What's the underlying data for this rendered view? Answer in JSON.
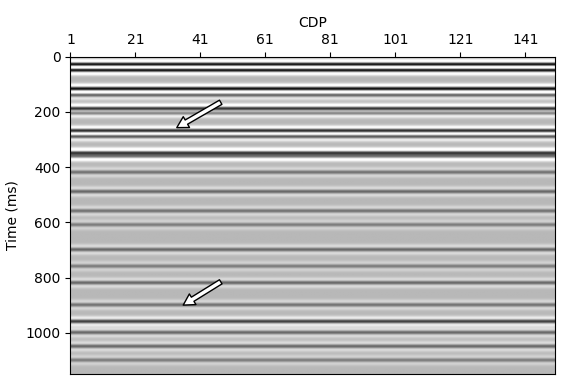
{
  "chart_data": {
    "type": "seismic_section",
    "x_label": "CDP",
    "y_label": "Time (ms)",
    "xlim": [
      1,
      150
    ],
    "ylim": [
      1150,
      0
    ],
    "xticks": [
      1,
      21,
      41,
      61,
      81,
      101,
      121,
      141
    ],
    "yticks": [
      0,
      200,
      400,
      600,
      800,
      1000
    ],
    "color": "gray",
    "reflectors": [
      {
        "time": 30,
        "amplitude": 1.0
      },
      {
        "time": 50,
        "amplitude": 1.0
      },
      {
        "time": 118,
        "amplitude": 0.9
      },
      {
        "time": 140,
        "amplitude": 0.5
      },
      {
        "time": 190,
        "amplitude": 0.9
      },
      {
        "time": 205,
        "amplitude": 0.6
      },
      {
        "time": 270,
        "amplitude": 0.8
      },
      {
        "time": 290,
        "amplitude": 0.6
      },
      {
        "time": 350,
        "amplitude": 1.0
      },
      {
        "time": 362,
        "amplitude": 0.8
      },
      {
        "time": 420,
        "amplitude": 0.35
      },
      {
        "time": 490,
        "amplitude": 0.4
      },
      {
        "time": 560,
        "amplitude": 0.35
      },
      {
        "time": 610,
        "amplitude": 0.3
      },
      {
        "time": 700,
        "amplitude": 0.4
      },
      {
        "time": 760,
        "amplitude": 0.3
      },
      {
        "time": 820,
        "amplitude": 0.4
      },
      {
        "time": 900,
        "amplitude": 0.35
      },
      {
        "time": 960,
        "amplitude": 0.6
      },
      {
        "time": 1000,
        "amplitude": 0.4
      },
      {
        "time": 1050,
        "amplitude": 0.4
      },
      {
        "time": 1100,
        "amplitude": 0.3
      }
    ],
    "arrows": [
      {
        "from": [
          48,
          160
        ],
        "to": [
          33,
          262
        ]
      },
      {
        "from": [
          48,
          810
        ],
        "to": [
          35,
          905
        ]
      }
    ]
  }
}
